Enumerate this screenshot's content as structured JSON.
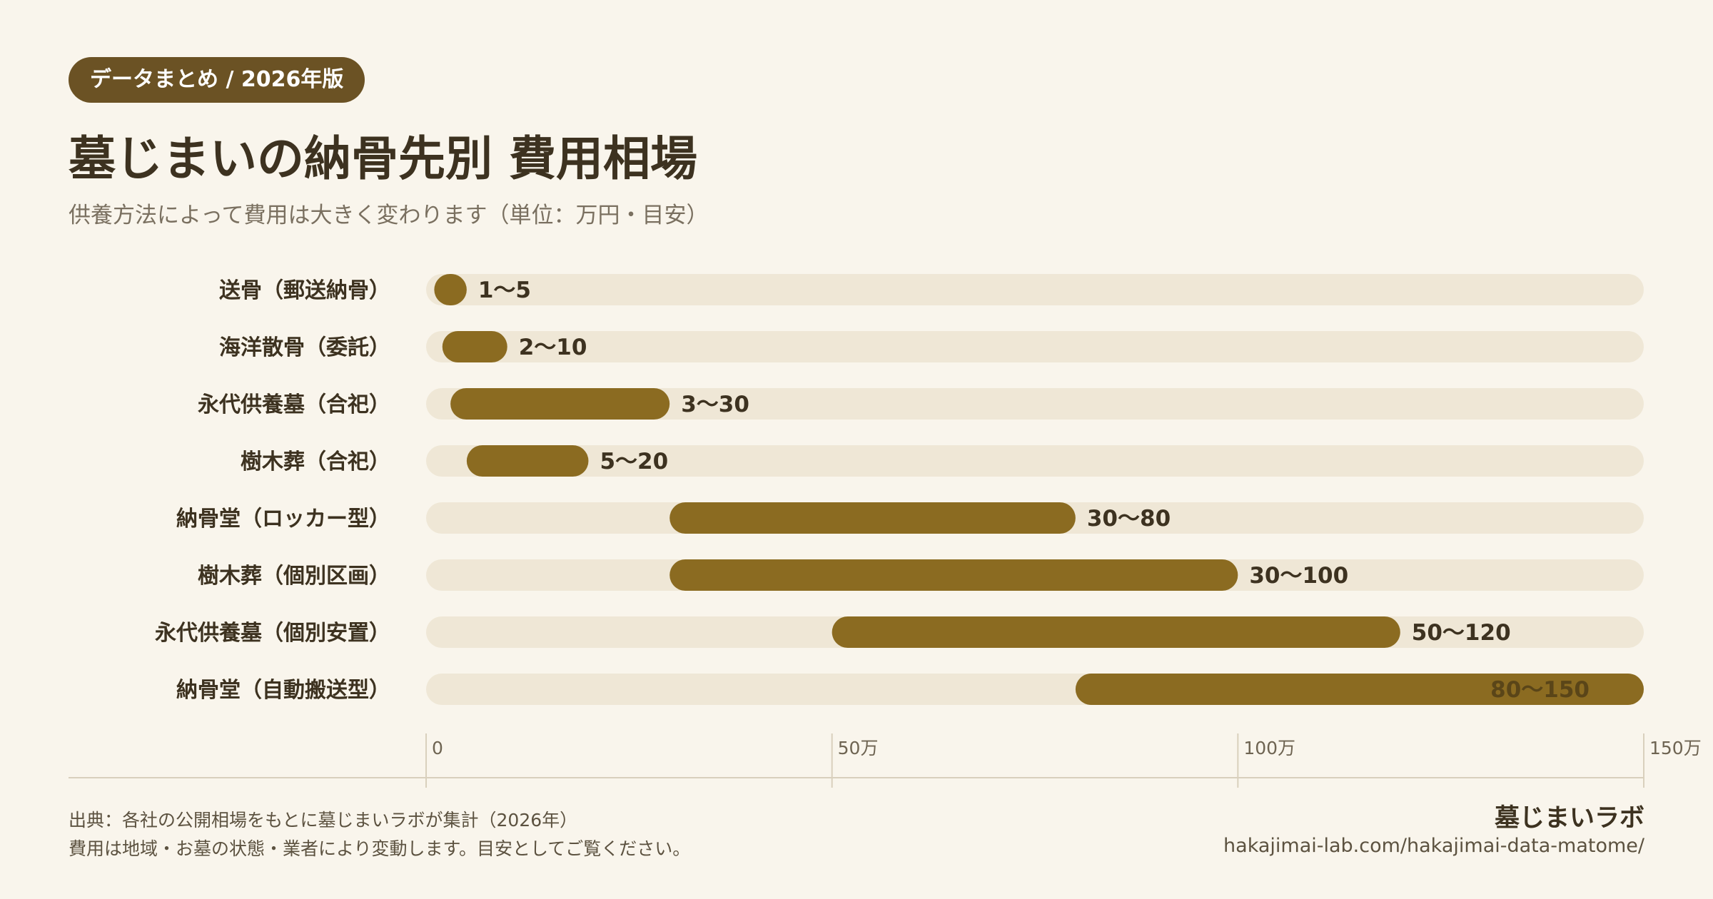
{
  "header": {
    "tag": "データまとめ / 2026年版",
    "title": "墓じまいの納骨先別 費用相場",
    "subtitle": "供養方法によって費用は大きく変わります（単位：万円・目安）"
  },
  "colors": {
    "background": "#f9f5ec",
    "bar": "#8b6b21",
    "track": "#efe7d6",
    "tag_bg": "#6b5224",
    "text_dark": "#3d3220",
    "text_muted": "#7a7060"
  },
  "chart_data": {
    "type": "bar",
    "orientation": "horizontal-range",
    "categories": [
      "送骨（郵送納骨）",
      "海洋散骨（委託）",
      "永代供養墓（合祀）",
      "樹木葬（合祀）",
      "納骨堂（ロッカー型）",
      "樹木葬（個別区画）",
      "永代供養墓（個別安置）",
      "納骨堂（自動搬送型）"
    ],
    "ranges": [
      [
        1,
        5
      ],
      [
        2,
        10
      ],
      [
        3,
        30
      ],
      [
        5,
        20
      ],
      [
        30,
        80
      ],
      [
        30,
        100
      ],
      [
        50,
        120
      ],
      [
        80,
        150
      ]
    ],
    "value_labels": [
      "1〜5",
      "2〜10",
      "3〜30",
      "5〜20",
      "30〜80",
      "30〜100",
      "50〜120",
      "80〜150"
    ],
    "xlim": [
      0,
      150
    ],
    "xticks": [
      {
        "value": 0,
        "label": "0"
      },
      {
        "value": 50,
        "label": "50万"
      },
      {
        "value": 100,
        "label": "100万"
      },
      {
        "value": 150,
        "label": "150万"
      }
    ],
    "unit": "万円",
    "grid": true
  },
  "footer": {
    "source": "出典：各社の公開相場をもとに墓じまいラボが集計（2026年）",
    "note": "費用は地域・お墓の状態・業者により変動します。目安としてご覧ください。",
    "brand": "墓じまいラボ",
    "url": "hakajimai-lab.com/hakajimai-data-matome/"
  }
}
